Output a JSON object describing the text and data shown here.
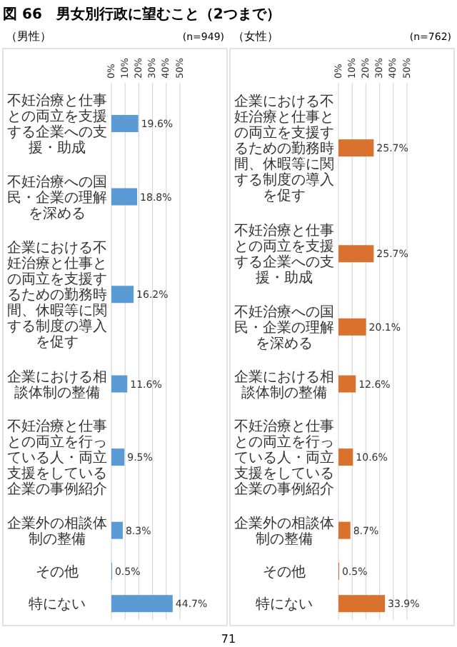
{
  "chart_data": [
    {
      "type": "bar",
      "orientation": "horizontal",
      "title": "図 66　男女別行政に望むこと（2つまで）",
      "subtitle": "（男性）",
      "annotations": [
        "(n=949)"
      ],
      "categories": [
        "不妊治療と仕事との両立を支援する企業への支援・助成",
        "不妊治療への国民・企業の理解を深める",
        "企業における不妊治療と仕事との両立を支援するための勤務時間、休暇等に関する制度の導入を促す",
        "企業における相談体制の整備",
        "不妊治療と仕事との両立を行っている人・両立支援をしている企業の事例紹介",
        "企業外の相談体制の整備",
        "その他",
        "特にない"
      ],
      "values": [
        19.6,
        18.8,
        16.2,
        11.6,
        9.5,
        8.3,
        0.5,
        44.7
      ],
      "value_labels": [
        "19.6%",
        "18.8%",
        "16.2%",
        "11.6%",
        "9.5%",
        "8.3%",
        "0.5%",
        "44.7%"
      ],
      "color": "#5b9bd5",
      "xlim": [
        0,
        50
      ],
      "xticks": [
        {
          "value": 0,
          "label": "0%"
        },
        {
          "value": 10,
          "label": "10%"
        },
        {
          "value": 20,
          "label": "20%"
        },
        {
          "value": 30,
          "label": "30%"
        },
        {
          "value": 40,
          "label": "40%"
        },
        {
          "value": 50,
          "label": "50%"
        }
      ],
      "grid": "x"
    },
    {
      "type": "bar",
      "orientation": "horizontal",
      "subtitle": "（女性）",
      "annotations": [
        "(n=762)",
        "71"
      ],
      "categories": [
        "企業における不妊治療と仕事との両立を支援するための勤務時間、休暇等に関する制度の導入を促す",
        "不妊治療と仕事との両立を支援する企業への支援・助成",
        "不妊治療への国民・企業の理解を深める",
        "企業における相談体制の整備",
        "不妊治療と仕事との両立を行っている人・両立支援をしている企業の事例紹介",
        "企業外の相談体制の整備",
        "その他",
        "特にない"
      ],
      "values": [
        25.7,
        25.7,
        20.1,
        12.6,
        10.6,
        8.7,
        0.5,
        33.9
      ],
      "value_labels": [
        "25.7%",
        "25.7%",
        "20.1%",
        "12.6%",
        "10.6%",
        "8.7%",
        "0.5%",
        "33.9%"
      ],
      "color": "#d9722e",
      "xlim": [
        0,
        50
      ],
      "xticks": [
        {
          "value": 0,
          "label": "0%"
        },
        {
          "value": 10,
          "label": "10%"
        },
        {
          "value": 20,
          "label": "20%"
        },
        {
          "value": 30,
          "label": "30%"
        },
        {
          "value": 40,
          "label": "40%"
        },
        {
          "value": 50,
          "label": "50%"
        }
      ],
      "grid": "x"
    }
  ]
}
